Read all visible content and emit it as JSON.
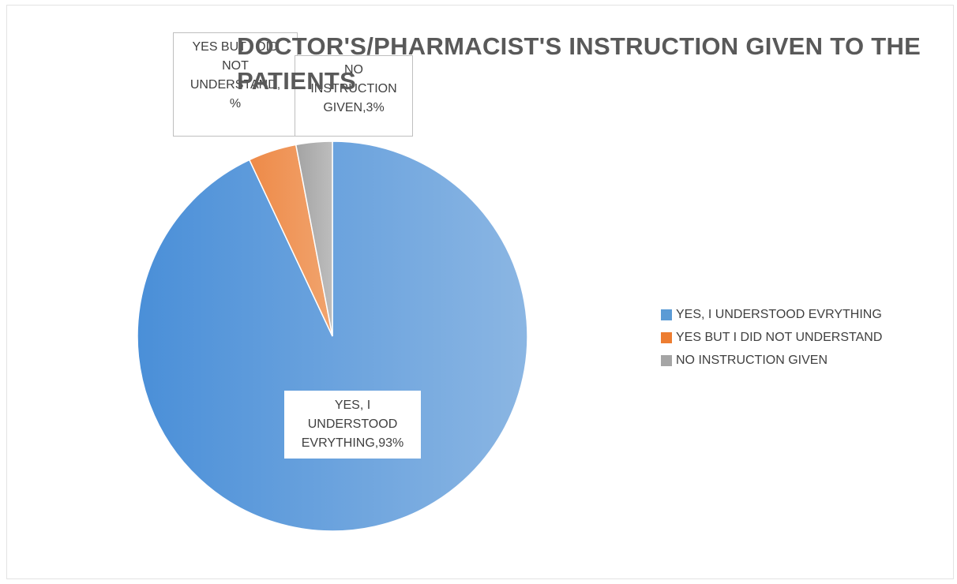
{
  "chart_data": {
    "type": "pie",
    "title": "DOCTOR'S/PHARMACIST'S INSTRUCTION GIVEN TO THE PATIENTS",
    "categories": [
      "YES, I UNDERSTOOD EVRYTHING",
      "YES BUT I DID NOT UNDERSTAND",
      "NO INSTRUCTION GIVEN"
    ],
    "values": [
      93,
      4,
      3
    ],
    "colors": [
      "#5b9bd5",
      "#ed7d31",
      "#a5a5a5"
    ],
    "data_labels": [
      [
        "YES, I",
        "UNDERSTOOD",
        "EVRYTHING,93%"
      ],
      [
        "YES BUT I DID",
        "NOT",
        "UNDERSTAND,",
        "%"
      ],
      [
        "NO",
        "INSTRUCTION",
        "GIVEN,3%"
      ]
    ],
    "legend": {
      "position": "right",
      "items": [
        "YES, I UNDERSTOOD EVRYTHING",
        "YES BUT I DID NOT UNDERSTAND",
        "NO INSTRUCTION GIVEN"
      ]
    },
    "start_angle_deg": 0,
    "direction": "clockwise"
  }
}
